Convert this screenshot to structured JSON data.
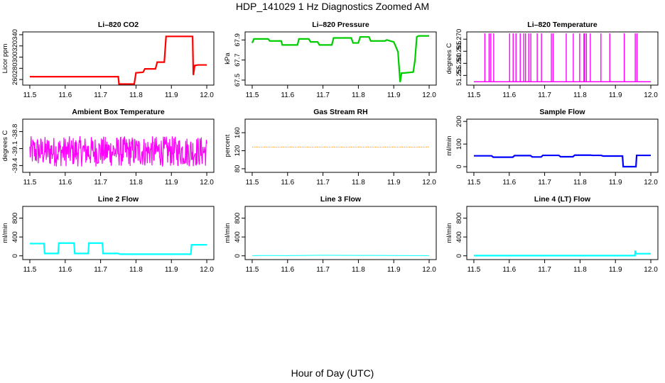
{
  "figure": {
    "title": "HDP_141029  1 Hz Diagnostics Zoomed AM",
    "xlabel": "Hour of Day (UTC)"
  },
  "chart_data": [
    {
      "type": "line",
      "title": "Li–820 CO2",
      "ylabel": "Licor ppm",
      "color": "#ff0000",
      "xlim": [
        11.48,
        12.02
      ],
      "ylim": [
        250,
        345
      ],
      "xticks": [
        "11.5",
        "11.6",
        "11.7",
        "11.8",
        "11.9",
        "12.0"
      ],
      "yticks": [
        "260",
        "280",
        "300",
        "320",
        "340"
      ],
      "series": [
        {
          "x": [
            11.5,
            11.75,
            11.752,
            11.795,
            11.8,
            11.82,
            11.825,
            11.855,
            11.86,
            11.88,
            11.885,
            11.96,
            11.962,
            11.966,
            11.975,
            12.0
          ],
          "y": [
            265,
            265,
            252,
            252,
            272,
            273,
            279,
            279,
            291,
            291,
            337,
            337,
            268,
            285,
            286,
            286
          ]
        }
      ]
    },
    {
      "type": "line",
      "title": "Li–820 Pressure",
      "ylabel": "kPa",
      "color": "#00cc00",
      "xlim": [
        11.48,
        12.02
      ],
      "ylim": [
        67.45,
        67.98
      ],
      "xticks": [
        "11.5",
        "11.6",
        "11.7",
        "11.8",
        "11.9",
        "12.0"
      ],
      "yticks": [
        "67.5",
        "67.7",
        "67.9"
      ],
      "series": [
        {
          "x": [
            11.5,
            11.505,
            11.545,
            11.55,
            11.582,
            11.585,
            11.628,
            11.632,
            11.66,
            11.665,
            11.685,
            11.69,
            11.725,
            11.73,
            11.78,
            11.785,
            11.8,
            11.805,
            11.83,
            11.835,
            11.875,
            11.88,
            11.9,
            11.905,
            11.912,
            11.918,
            11.922,
            11.928,
            11.955,
            11.96,
            11.965,
            11.97,
            12.0
          ],
          "y": [
            67.87,
            67.91,
            67.91,
            67.89,
            67.89,
            67.85,
            67.85,
            67.91,
            67.91,
            67.88,
            67.88,
            67.85,
            67.85,
            67.92,
            67.92,
            67.87,
            67.87,
            67.93,
            67.93,
            67.89,
            67.89,
            67.9,
            67.88,
            67.84,
            67.78,
            67.48,
            67.57,
            67.57,
            67.58,
            67.7,
            67.93,
            67.94,
            67.94
          ]
        }
      ]
    },
    {
      "type": "line",
      "title": "Li–820 Temperature",
      "ylabel": "degrees C",
      "color": "#ff00ff",
      "xlim": [
        11.48,
        12.02
      ],
      "ylim": [
        51.251,
        51.273
      ],
      "xticks": [
        "11.5",
        "11.6",
        "11.7",
        "11.8",
        "11.9",
        "12.0"
      ],
      "yticks": [
        "51.255",
        "51.260",
        "51.265",
        "51.270"
      ],
      "base": 51.2524,
      "top": 51.2724,
      "spikes": [
        11.531,
        11.543,
        11.548,
        11.556,
        11.601,
        11.611,
        11.619,
        11.631,
        11.641,
        11.646,
        11.655,
        11.661,
        11.679,
        11.691,
        11.719,
        11.724,
        11.761,
        11.781,
        11.799,
        11.811,
        11.813,
        11.818,
        11.829,
        11.859,
        11.884,
        11.925,
        11.956,
        11.961
      ]
    },
    {
      "type": "line",
      "title": "Ambient Box Temperature",
      "ylabel": "degrees C",
      "color": "#ff00ff",
      "xlim": [
        11.48,
        12.02
      ],
      "ylim": [
        -39.52,
        -38.58
      ],
      "xticks": [
        "11.5",
        "11.6",
        "11.7",
        "11.8",
        "11.9",
        "12.0"
      ],
      "yticks": [
        "-39.4",
        "-39.1",
        "-38.8"
      ],
      "noise_low": -39.42,
      "noise_high": -38.88,
      "noise_center": -39.12
    },
    {
      "type": "line",
      "title": "Gas Stream RH",
      "ylabel": "percent",
      "color": "#ff8c00",
      "xlim": [
        11.48,
        12.02
      ],
      "ylim": [
        72,
        190
      ],
      "xticks": [
        "11.5",
        "11.6",
        "11.7",
        "11.8",
        "11.9",
        "12.0"
      ],
      "yticks": [
        "80",
        "120",
        "160"
      ],
      "series": [
        {
          "x": [
            11.5,
            12.0
          ],
          "y": [
            128,
            128
          ]
        }
      ]
    },
    {
      "type": "line",
      "title": "Sample Flow",
      "ylabel": "ml/min",
      "color": "#0000ff",
      "xlim": [
        11.48,
        12.02
      ],
      "ylim": [
        -25,
        210
      ],
      "xticks": [
        "11.5",
        "11.6",
        "11.7",
        "11.8",
        "11.9",
        "12.0"
      ],
      "yticks": [
        "0",
        "100",
        "200"
      ],
      "series": [
        {
          "x": [
            11.5,
            11.55,
            11.555,
            11.61,
            11.615,
            11.66,
            11.665,
            11.69,
            11.695,
            11.74,
            11.745,
            11.78,
            11.785,
            11.83,
            11.835,
            11.86,
            11.865,
            11.92,
            11.922,
            11.958,
            11.96,
            12.0
          ],
          "y": [
            48,
            48,
            42,
            42,
            49,
            49,
            43,
            43,
            50,
            50,
            44,
            44,
            51,
            51,
            50,
            50,
            47,
            47,
            0,
            0,
            50,
            50
          ]
        }
      ]
    },
    {
      "type": "line",
      "title": "Line 2 Flow",
      "ylabel": "ml/min",
      "color": "#00ffff",
      "xlim": [
        11.48,
        12.02
      ],
      "ylim": [
        -80,
        1050
      ],
      "xticks": [
        "11.5",
        "11.6",
        "11.7",
        "11.8",
        "11.9",
        "12.0"
      ],
      "yticks": [
        "0",
        "400",
        "800"
      ],
      "series": [
        {
          "x": [
            11.5,
            11.54,
            11.542,
            11.58,
            11.582,
            11.625,
            11.627,
            11.665,
            11.667,
            11.705,
            11.707,
            11.75,
            11.755,
            11.955,
            11.957,
            12.0
          ],
          "y": [
            260,
            260,
            50,
            50,
            270,
            270,
            50,
            50,
            270,
            270,
            50,
            50,
            35,
            35,
            235,
            235
          ]
        }
      ]
    },
    {
      "type": "line",
      "title": "Line 3 Flow",
      "ylabel": "ml/min",
      "color": "#00ffff",
      "xlim": [
        11.48,
        12.02
      ],
      "ylim": [
        -80,
        1050
      ],
      "xticks": [
        "11.5",
        "11.6",
        "11.7",
        "11.8",
        "11.9",
        "12.0"
      ],
      "yticks": [
        "0",
        "400",
        "800"
      ],
      "series": [
        {
          "x": [
            11.5,
            11.55,
            11.6,
            11.65,
            11.7,
            11.75,
            11.8,
            11.85,
            11.9,
            11.95,
            12.0
          ],
          "y": [
            5,
            6,
            5,
            8,
            12,
            10,
            9,
            8,
            6,
            5,
            5
          ]
        }
      ]
    },
    {
      "type": "line",
      "title": "Line 4 (LT) Flow",
      "ylabel": "ml/min",
      "color": "#00ffff",
      "xlim": [
        11.48,
        12.02
      ],
      "ylim": [
        -80,
        1050
      ],
      "xticks": [
        "11.5",
        "11.6",
        "11.7",
        "11.8",
        "11.9",
        "12.0"
      ],
      "yticks": [
        "0",
        "400",
        "800"
      ],
      "series": [
        {
          "x": [
            11.5,
            11.955,
            11.956,
            11.958,
            11.96,
            11.962,
            12.0
          ],
          "y": [
            5,
            5,
            110,
            60,
            45,
            45,
            45
          ]
        }
      ]
    }
  ]
}
